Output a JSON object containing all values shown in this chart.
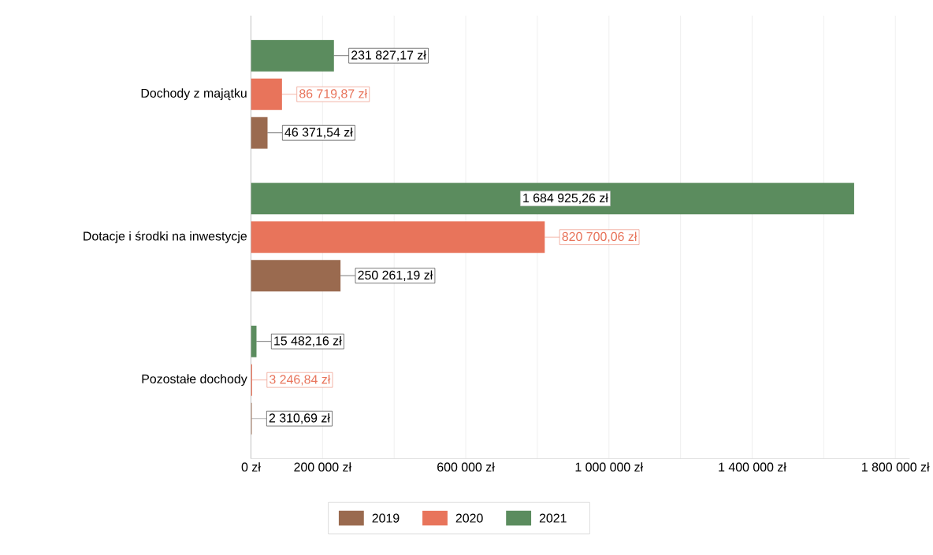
{
  "chart_data": {
    "type": "bar",
    "orientation": "horizontal",
    "categories": [
      "Dochody z majątku",
      "Dotacje i środki na inwestycje",
      "Pozostałe dochody"
    ],
    "series": [
      {
        "name": "2019",
        "color": "#9a6a4f",
        "values": [
          46371.54,
          250261.19,
          2310.69
        ],
        "value_labels": [
          "46 371,54 zł",
          "250 261,19 zł",
          "2 310,69 zł"
        ]
      },
      {
        "name": "2020",
        "color": "#e8745b",
        "values": [
          86719.87,
          820700.06,
          3246.84
        ],
        "value_labels": [
          "86 719,87 zł",
          "820 700,06 zł",
          "3 246,84 zł"
        ]
      },
      {
        "name": "2021",
        "color": "#5b8c5e",
        "values": [
          231827.17,
          1684925.26,
          15482.16
        ],
        "value_labels": [
          "231 827,17 zł",
          "1 684 925,26 zł",
          "15 482,16 zł"
        ]
      }
    ],
    "xlim": [
      0,
      1840000
    ],
    "xticks": [
      {
        "value": 0,
        "label": "0 zł"
      },
      {
        "value": 200000,
        "label": "200 000 zł"
      },
      {
        "value": 400000,
        "label": null
      },
      {
        "value": 600000,
        "label": "600 000 zł"
      },
      {
        "value": 800000,
        "label": null
      },
      {
        "value": 1000000,
        "label": "1 000 000 zł"
      },
      {
        "value": 1200000,
        "label": null
      },
      {
        "value": 1400000,
        "label": "1 400 000 zł"
      },
      {
        "value": 1600000,
        "label": null
      },
      {
        "value": 1800000,
        "label": "1 800 000 zł"
      }
    ],
    "grid": "x",
    "legend": "bottom"
  }
}
